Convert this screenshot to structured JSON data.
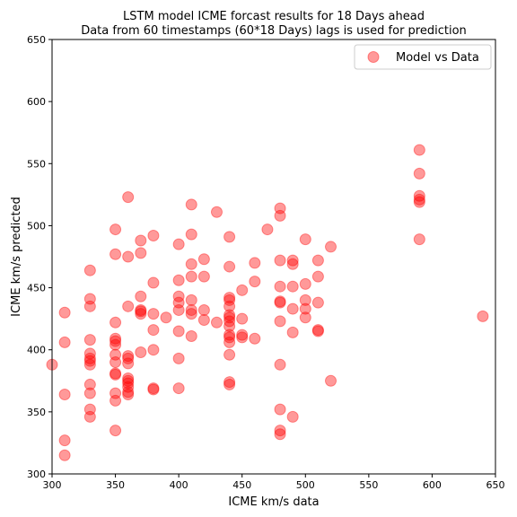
{
  "chart_data": {
    "type": "scatter",
    "title_lines": [
      "LSTM model ICME forcast results for 18 Days ahead",
      "Data from 60 timestamps (60*18 Days) lags is used for prediction"
    ],
    "xlabel": "ICME km/s data",
    "ylabel": "ICME km/s predicted",
    "xlim": [
      300,
      650
    ],
    "ylim": [
      300,
      650
    ],
    "xticks": [
      300,
      350,
      400,
      450,
      500,
      550,
      600,
      650
    ],
    "yticks": [
      300,
      350,
      400,
      450,
      500,
      550,
      600,
      650
    ],
    "grid": false,
    "legend_position": "top-right",
    "marker_color": "#ff0000",
    "marker_opacity": 0.4,
    "series": [
      {
        "name": "Model vs Data",
        "points": [
          [
            300,
            388
          ],
          [
            310,
            430
          ],
          [
            310,
            406
          ],
          [
            310,
            364
          ],
          [
            310,
            327
          ],
          [
            310,
            315
          ],
          [
            330,
            464
          ],
          [
            330,
            441
          ],
          [
            330,
            435
          ],
          [
            330,
            408
          ],
          [
            330,
            397
          ],
          [
            330,
            393
          ],
          [
            330,
            391
          ],
          [
            330,
            388
          ],
          [
            330,
            372
          ],
          [
            330,
            365
          ],
          [
            330,
            352
          ],
          [
            330,
            346
          ],
          [
            350,
            497
          ],
          [
            350,
            477
          ],
          [
            350,
            422
          ],
          [
            350,
            409
          ],
          [
            350,
            407
          ],
          [
            350,
            404
          ],
          [
            350,
            396
          ],
          [
            350,
            390
          ],
          [
            350,
            381
          ],
          [
            350,
            380
          ],
          [
            350,
            365
          ],
          [
            350,
            359
          ],
          [
            350,
            335
          ],
          [
            360,
            523
          ],
          [
            360,
            475
          ],
          [
            360,
            435
          ],
          [
            360,
            395
          ],
          [
            360,
            393
          ],
          [
            360,
            389
          ],
          [
            360,
            377
          ],
          [
            360,
            375
          ],
          [
            360,
            373
          ],
          [
            360,
            370
          ],
          [
            360,
            366
          ],
          [
            360,
            364
          ],
          [
            370,
            488
          ],
          [
            370,
            478
          ],
          [
            370,
            443
          ],
          [
            370,
            432
          ],
          [
            370,
            431
          ],
          [
            370,
            429
          ],
          [
            370,
            398
          ],
          [
            380,
            492
          ],
          [
            380,
            454
          ],
          [
            380,
            429
          ],
          [
            380,
            416
          ],
          [
            380,
            400
          ],
          [
            380,
            369
          ],
          [
            380,
            368
          ],
          [
            390,
            426
          ],
          [
            400,
            485
          ],
          [
            400,
            456
          ],
          [
            400,
            443
          ],
          [
            400,
            438
          ],
          [
            400,
            432
          ],
          [
            400,
            415
          ],
          [
            400,
            393
          ],
          [
            400,
            369
          ],
          [
            410,
            517
          ],
          [
            410,
            493
          ],
          [
            410,
            469
          ],
          [
            410,
            459
          ],
          [
            410,
            440
          ],
          [
            410,
            432
          ],
          [
            410,
            429
          ],
          [
            410,
            411
          ],
          [
            420,
            473
          ],
          [
            420,
            459
          ],
          [
            420,
            432
          ],
          [
            420,
            424
          ],
          [
            430,
            422
          ],
          [
            430,
            511
          ],
          [
            440,
            491
          ],
          [
            440,
            467
          ],
          [
            440,
            442
          ],
          [
            440,
            440
          ],
          [
            440,
            435
          ],
          [
            440,
            428
          ],
          [
            440,
            426
          ],
          [
            440,
            423
          ],
          [
            440,
            419
          ],
          [
            440,
            412
          ],
          [
            440,
            410
          ],
          [
            440,
            406
          ],
          [
            440,
            396
          ],
          [
            440,
            374
          ],
          [
            440,
            372
          ],
          [
            450,
            448
          ],
          [
            450,
            425
          ],
          [
            450,
            412
          ],
          [
            450,
            410
          ],
          [
            460,
            470
          ],
          [
            460,
            455
          ],
          [
            460,
            409
          ],
          [
            470,
            497
          ],
          [
            480,
            514
          ],
          [
            480,
            508
          ],
          [
            480,
            472
          ],
          [
            480,
            451
          ],
          [
            480,
            439
          ],
          [
            480,
            438
          ],
          [
            480,
            423
          ],
          [
            480,
            388
          ],
          [
            480,
            352
          ],
          [
            480,
            335
          ],
          [
            480,
            332
          ],
          [
            490,
            472
          ],
          [
            490,
            469
          ],
          [
            490,
            451
          ],
          [
            490,
            433
          ],
          [
            490,
            414
          ],
          [
            490,
            346
          ],
          [
            500,
            489
          ],
          [
            500,
            453
          ],
          [
            500,
            440
          ],
          [
            500,
            433
          ],
          [
            500,
            426
          ],
          [
            510,
            472
          ],
          [
            510,
            459
          ],
          [
            510,
            438
          ],
          [
            510,
            416
          ],
          [
            510,
            415
          ],
          [
            520,
            483
          ],
          [
            520,
            375
          ],
          [
            590,
            561
          ],
          [
            590,
            542
          ],
          [
            590,
            524
          ],
          [
            590,
            521
          ],
          [
            590,
            519
          ],
          [
            590,
            489
          ],
          [
            640,
            427
          ]
        ]
      }
    ]
  }
}
